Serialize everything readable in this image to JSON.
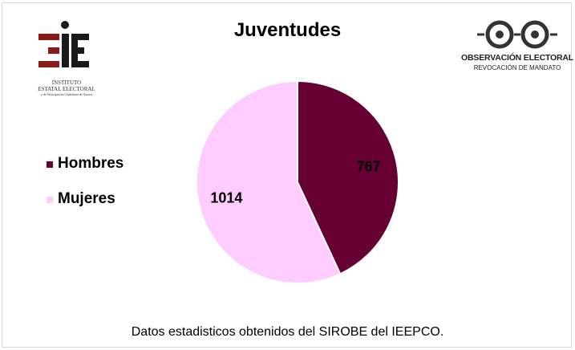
{
  "chart_data": {
    "type": "pie",
    "title": "Juventudes",
    "slices": [
      {
        "label": "Hombres",
        "value": 767,
        "color": "#660033"
      },
      {
        "label": "Mujeres",
        "value": 1014,
        "color": "#FFCCFF"
      }
    ],
    "legend_position": "left",
    "data_labels": [
      "767",
      "1014"
    ]
  },
  "logos": {
    "left": {
      "name": "IEEPCO",
      "line1": "INSTITUTO",
      "line2": "ESTATAL ELECTORAL",
      "line3": "y de Participación Ciudadana de Oaxaca"
    },
    "right": {
      "line1": "OBSERVACIÓN ELECTORAL",
      "line2": "REVOCACIÓN DE MANDATO"
    }
  },
  "footer": {
    "source": "Datos estadisticos obtenidos del SIROBE del IEEPCO."
  }
}
